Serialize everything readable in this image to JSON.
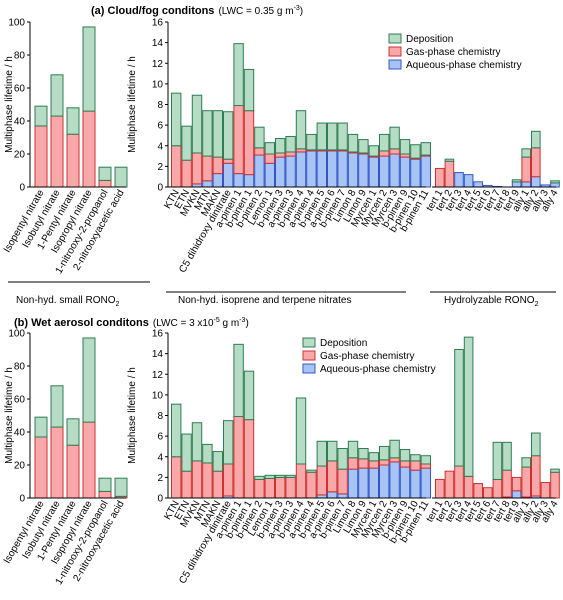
{
  "legend": {
    "deposition": "Deposition",
    "gas": "Gas-phase chemistry",
    "aqueous": "Aqueous-phase chemistry"
  },
  "colors": {
    "deposition_fill": "#b6dcc6",
    "deposition_line": "#2e7d52",
    "gas_fill": "#f8a8a8",
    "gas_line": "#d03030",
    "aqueous_fill": "#a8c4f4",
    "aqueous_line": "#3355cc",
    "axis": "#000000"
  },
  "group_labels": {
    "small": "Non-hyd. small RONO",
    "small_sub": "2",
    "terpene": "Non-hyd. isoprene and terpene nitrates",
    "hydro": "Hydrolyzable RONO",
    "hydro_sub": "2"
  },
  "chart_data": [
    {
      "type": "bar",
      "stacked": true,
      "panel": "a",
      "title": "(a) Cloud/fog conditons",
      "title_suffix_pre": "(LWC = 0.35 g m",
      "title_suffix_sup": "-3",
      "title_suffix_post": ")",
      "ylabel": "Multiphase lifetime / h",
      "ylim": [
        0,
        100
      ],
      "yticks": [
        0,
        20,
        40,
        60,
        80,
        100
      ],
      "categories": [
        "Isopentyl nitrate",
        "Isobutyl nitrate",
        "1-Pentyl nitrate",
        "Isopropyl nitrate",
        "1-nitrooxy-2-propanol",
        "2-nitrooxyacetic acid"
      ],
      "series": [
        {
          "name": "Aqueous-phase chemistry",
          "values": [
            0,
            0,
            0,
            0,
            0,
            0
          ]
        },
        {
          "name": "Gas-phase chemistry",
          "values": [
            37,
            43,
            32,
            46,
            4,
            0
          ]
        },
        {
          "name": "Deposition",
          "values": [
            12,
            25,
            16,
            51,
            8,
            12
          ]
        }
      ]
    },
    {
      "type": "bar",
      "stacked": true,
      "panel": "a",
      "ylabel": "Multiphase lifetime / h",
      "ylim": [
        0,
        16
      ],
      "yticks": [
        0,
        2,
        4,
        6,
        8,
        10,
        12,
        14,
        16
      ],
      "categories": [
        "KTN",
        "ETN",
        "MVKN",
        "MTN",
        "MAKN",
        "C5 dihidroxy dinitrate",
        "a-pinen 1",
        "b-pinen 1",
        "b-pinen 2",
        "Lemon 1",
        "b-pinen 3",
        "a-pinen 3",
        "b-pinen 4",
        "a-pinen 4",
        "b-pinen 5",
        "a-pinen 6",
        "b-pinen 7",
        "Limon 8",
        "Limon 9",
        "Myrcen 1",
        "Myrcen 2",
        "Myrcen 3",
        "b-pinen 9",
        "b-pinen 10",
        "b-pinen 11"
      ],
      "series": [
        {
          "name": "Aqueous-phase chemistry",
          "values": [
            0,
            0,
            0.3,
            0.6,
            1.3,
            2.3,
            1.3,
            1.2,
            3.1,
            2.3,
            2.9,
            3.0,
            3.4,
            3.5,
            3.5,
            3.5,
            3.5,
            3.3,
            3.2,
            2.9,
            3.0,
            3.2,
            2.9,
            2.7,
            3.0
          ]
        },
        {
          "name": "Gas-phase chemistry",
          "values": [
            4.0,
            2.6,
            3.0,
            2.4,
            1.6,
            0.4,
            6.6,
            6.2,
            0.7,
            0.9,
            0.4,
            0.4,
            0.3,
            0.1,
            0.1,
            0.1,
            0.1,
            0.1,
            0.1,
            0.1,
            0.5,
            0.5,
            0.3,
            0.1,
            0.1
          ]
        },
        {
          "name": "Deposition",
          "values": [
            5.1,
            3.3,
            5.6,
            4.4,
            4.5,
            4.6,
            6.0,
            4.0,
            2.0,
            1.1,
            1.4,
            1.5,
            3.7,
            1.5,
            2.6,
            2.6,
            2.6,
            1.7,
            1.3,
            1.0,
            1.6,
            2.1,
            1.4,
            1.3,
            1.2
          ]
        }
      ]
    },
    {
      "type": "bar",
      "stacked": true,
      "panel": "a",
      "categories": [
        "tert 1",
        "tert 2",
        "tert 3",
        "tert 4",
        "tert 5",
        "tert 6",
        "tert 7",
        "tert 8",
        "tert 9",
        "ally 1",
        "ally 2",
        "ally 3",
        "ally 4"
      ],
      "series": [
        {
          "name": "Aqueous-phase chemistry",
          "values": [
            0,
            0,
            1.4,
            1.2,
            0.5,
            0.15,
            0.05,
            0,
            0.5,
            0.5,
            1.0,
            0.2,
            0.4
          ]
        },
        {
          "name": "Gas-phase chemistry",
          "values": [
            1.8,
            2.5,
            0,
            0,
            0,
            0,
            0,
            0,
            0,
            2.4,
            2.8,
            0,
            0
          ]
        },
        {
          "name": "Deposition",
          "values": [
            0,
            0.2,
            0,
            0,
            0,
            0,
            0,
            0,
            0.2,
            0.8,
            1.6,
            0,
            0.2
          ]
        }
      ]
    },
    {
      "type": "bar",
      "stacked": true,
      "panel": "b",
      "title": "(b) Wet aerosol conditons",
      "title_suffix_pre": "(LWC = 3 x10",
      "title_suffix_sup": "-5",
      "title_suffix_post": " g m",
      "title_suffix_sup2": "-3",
      "title_suffix_end": ")",
      "ylabel": "Multiphase lifetime / h",
      "ylim": [
        0,
        100
      ],
      "yticks": [
        0,
        20,
        40,
        60,
        80,
        100
      ],
      "categories": [
        "Isopentyl nitrate",
        "Isobutyl nitrate",
        "1-Pentyl nitrate",
        "Isopropyl nitrate",
        "1-nitrooxy-2-propanol",
        "2-nitrooxyacetic acid"
      ],
      "series": [
        {
          "name": "Aqueous-phase chemistry",
          "values": [
            0,
            0,
            0,
            0,
            0,
            0
          ]
        },
        {
          "name": "Gas-phase chemistry",
          "values": [
            37,
            43,
            32,
            46,
            4,
            1
          ]
        },
        {
          "name": "Deposition",
          "values": [
            12,
            25,
            16,
            51,
            8,
            11
          ]
        }
      ]
    },
    {
      "type": "bar",
      "stacked": true,
      "panel": "b",
      "ylabel": "Multiphase lifetime / h",
      "ylim": [
        0,
        16
      ],
      "yticks": [
        0,
        2,
        4,
        6,
        8,
        10,
        12,
        14,
        16
      ],
      "categories": [
        "KTN",
        "ETN",
        "MVKN",
        "MTN",
        "MAKN",
        "C5 dihidroxy dinitrate",
        "a-pinen 1",
        "b-pinen 1",
        "b-pinen 2",
        "Lemon 1",
        "b-pinen 3",
        "a-pinen 3",
        "b-pinen 4",
        "a-pinen 4",
        "b-pinen 5",
        "a-pinen 6",
        "b-pinen 7",
        "Limon 8",
        "Limon 9",
        "Myrcen 1",
        "Myrcen 2",
        "Myrcen 3",
        "b-pinen 9",
        "b-pinen 10",
        "b-pinen 11"
      ],
      "series": [
        {
          "name": "Aqueous-phase chemistry",
          "values": [
            0,
            0,
            0,
            0,
            0,
            0.2,
            0,
            0,
            0,
            0,
            0,
            0,
            0,
            0,
            0.3,
            0.6,
            0.4,
            2.8,
            2.9,
            2.9,
            3.2,
            3.5,
            3.0,
            2.7,
            2.9
          ]
        },
        {
          "name": "Gas-phase chemistry",
          "values": [
            4.0,
            2.6,
            3.6,
            3.4,
            2.6,
            3.1,
            7.9,
            7.6,
            1.8,
            1.9,
            2.0,
            2.0,
            3.3,
            2.5,
            2.8,
            3.0,
            2.4,
            1.1,
            0.9,
            0.7,
            0.5,
            0.4,
            0.6,
            0.9,
            0.4
          ]
        },
        {
          "name": "Deposition",
          "values": [
            5.1,
            3.6,
            3.7,
            1.8,
            1.9,
            4.2,
            7.0,
            4.7,
            0.3,
            0.3,
            0.2,
            0.2,
            6.4,
            0.2,
            2.4,
            1.9,
            2.0,
            1.6,
            1.0,
            0.8,
            1.3,
            1.7,
            1.1,
            0.6,
            0.8
          ]
        }
      ]
    },
    {
      "type": "bar",
      "stacked": true,
      "panel": "b",
      "categories": [
        "tert 1",
        "tert 2",
        "tert 3",
        "tert 4",
        "tert 5",
        "tert 6",
        "tert 7",
        "tert 8",
        "tert 9",
        "ally 1",
        "ally 2",
        "ally 3",
        "ally 4"
      ],
      "series": [
        {
          "name": "Aqueous-phase chemistry",
          "values": [
            0,
            0,
            0,
            0,
            0,
            0,
            0,
            0.1,
            0.7,
            0.1,
            0.2,
            0,
            0
          ]
        },
        {
          "name": "Gas-phase chemistry",
          "values": [
            1.8,
            2.6,
            3.1,
            2.1,
            1.4,
            1.0,
            1.8,
            2.6,
            1.3,
            2.9,
            3.9,
            1.5,
            2.5
          ]
        },
        {
          "name": "Deposition",
          "values": [
            0,
            0,
            11.3,
            13.5,
            0,
            0,
            3.6,
            2.7,
            0,
            0.9,
            2.2,
            0,
            0.3
          ]
        }
      ]
    }
  ]
}
